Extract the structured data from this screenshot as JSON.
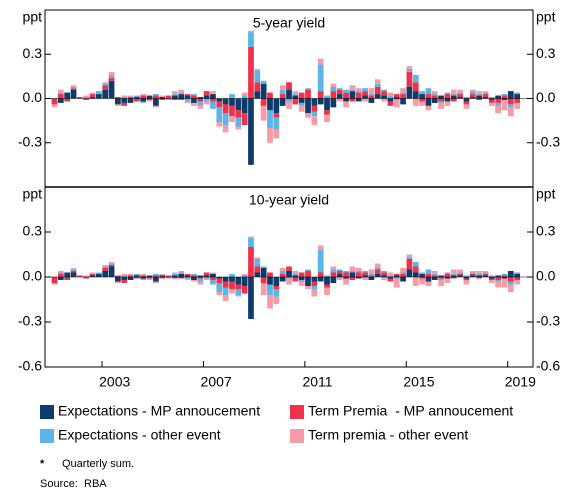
{
  "chart_data": [
    {
      "type": "bar",
      "stacked": true,
      "title": "5-year yield",
      "y_label": "ppt",
      "x": [
        2001,
        2001.25,
        2001.5,
        2001.75,
        2002,
        2002.25,
        2002.5,
        2002.75,
        2003,
        2003.25,
        2003.5,
        2003.75,
        2004,
        2004.25,
        2004.5,
        2004.75,
        2005,
        2005.25,
        2005.5,
        2005.75,
        2006,
        2006.25,
        2006.5,
        2006.75,
        2007,
        2007.25,
        2007.5,
        2007.75,
        2008,
        2008.25,
        2008.5,
        2008.75,
        2009,
        2009.25,
        2009.5,
        2009.75,
        2010,
        2010.25,
        2010.5,
        2010.75,
        2011,
        2011.25,
        2011.5,
        2011.75,
        2012,
        2012.25,
        2012.5,
        2012.75,
        2013,
        2013.25,
        2013.5,
        2013.75,
        2014,
        2014.25,
        2014.5,
        2014.75,
        2015,
        2015.25,
        2015.5,
        2015.75,
        2016,
        2016.25,
        2016.5,
        2016.75,
        2017,
        2017.25,
        2017.5,
        2017.75,
        2018,
        2018.25,
        2018.5,
        2018.75,
        2019,
        2019.25
      ],
      "xlim": [
        2000.75,
        2020
      ],
      "ylim": [
        -0.6,
        0.6
      ],
      "yticks": [
        -0.3,
        {
          "value": 0,
          "label": "0.0"
        },
        0.3
      ],
      "series": [
        {
          "name": "Expectations - MP annoucement",
          "color": "#0d3b6e",
          "values": [
            0,
            -0.03,
            0.04,
            0.06,
            0,
            0,
            0.01,
            0.03,
            0.06,
            0.12,
            -0.04,
            -0.03,
            -0.03,
            0.01,
            -0.02,
            0.02,
            -0.05,
            0.01,
            0,
            0.02,
            0.03,
            0.02,
            -0.03,
            0.01,
            0.02,
            0.03,
            -0.02,
            -0.04,
            -0.05,
            -0.08,
            -0.1,
            -0.45,
            0.05,
            0.1,
            -0.08,
            -0.1,
            -0.05,
            0.06,
            0.02,
            -0.03,
            -0.1,
            -0.05,
            -0.04,
            -0.08,
            -0.06,
            0.03,
            -0.02,
            0.05,
            -0.02,
            0.02,
            -0.03,
            0.03,
            0.02,
            -0.02,
            0.01,
            -0.04,
            0.08,
            0.05,
            0.03,
            -0.05,
            -0.03,
            0.02,
            -0.02,
            0.02,
            0.01,
            -0.02,
            0.01,
            0.02,
            0.01,
            -0.01,
            0.02,
            -0.01,
            0.05,
            0.03
          ]
        },
        {
          "name": "Term Premia  - MP annoucement",
          "color": "#f0314b",
          "values": [
            -0.04,
            0.03,
            -0.02,
            0.01,
            0.01,
            -0.01,
            0.02,
            0,
            0.03,
            0.02,
            0.01,
            -0.02,
            0.01,
            -0.02,
            0.02,
            -0.01,
            0.02,
            -0.01,
            0.02,
            -0.01,
            -0.01,
            0.01,
            0.02,
            -0.02,
            0.03,
            -0.02,
            -0.04,
            -0.06,
            -0.07,
            -0.05,
            -0.08,
            0.35,
            0.06,
            -0.05,
            0.04,
            -0.03,
            0.03,
            0.05,
            -0.04,
            0.04,
            0.06,
            -0.04,
            0.05,
            -0.03,
            0.05,
            0.03,
            0.04,
            -0.02,
            0.04,
            0.03,
            0.02,
            0.05,
            0.03,
            -0.03,
            0.02,
            0.03,
            0.1,
            0.06,
            -0.02,
            0.03,
            0.02,
            -0.02,
            0.03,
            -0.02,
            0.02,
            -0.02,
            0.02,
            -0.01,
            0.02,
            -0.02,
            -0.03,
            0.02,
            -0.04,
            -0.03
          ]
        },
        {
          "name": "Expectations - other event",
          "color": "#5bb5e6",
          "values": [
            0,
            0.01,
            0,
            0.01,
            0,
            0.01,
            0,
            0.02,
            0.01,
            0.02,
            0,
            0.01,
            0,
            0.01,
            -0.01,
            0,
            0.01,
            0,
            -0.01,
            0.01,
            0.01,
            -0.02,
            0.01,
            -0.03,
            -0.02,
            -0.05,
            -0.1,
            -0.08,
            0.03,
            -0.06,
            0.02,
            0.1,
            0.08,
            0.02,
            -0.12,
            -0.08,
            0.03,
            -0.02,
            0.01,
            -0.02,
            0.01,
            -0.03,
            0.18,
            0.02,
            0.03,
            0.01,
            0.02,
            0.01,
            0.01,
            0.02,
            0.01,
            0.02,
            0.01,
            0.02,
            -0.01,
            0.01,
            0.02,
            0.05,
            0.02,
            0.04,
            0.01,
            -0.01,
            0.01,
            0.01,
            0.01,
            0.01,
            0.02,
            0.01,
            0.01,
            0.01,
            -0.02,
            0.01,
            -0.02,
            0.01
          ]
        },
        {
          "name": "Term premia - other event",
          "color": "#f89ba4",
          "values": [
            -0.02,
            0.02,
            0,
            0.01,
            0,
            0.01,
            0.01,
            0,
            0.01,
            0.02,
            -0.01,
            0.01,
            0.01,
            0,
            0.01,
            -0.01,
            -0.01,
            0.01,
            0,
            0.02,
            0.02,
            -0.01,
            -0.02,
            -0.02,
            -0.02,
            0.02,
            -0.03,
            -0.05,
            -0.04,
            -0.02,
            0.02,
            0.01,
            0.01,
            -0.1,
            -0.1,
            -0.06,
            0.03,
            -0.05,
            0.02,
            -0.04,
            -0.03,
            -0.06,
            0.04,
            -0.05,
            0.02,
            -0.02,
            -0.04,
            0.03,
            0.02,
            -0.02,
            0.04,
            0.03,
            -0.02,
            0.02,
            -0.05,
            0.03,
            0.02,
            -0.05,
            -0.03,
            -0.03,
            0.02,
            -0.04,
            -0.03,
            0.03,
            0.02,
            -0.03,
            0.01,
            0.02,
            0.01,
            -0.02,
            -0.05,
            -0.07,
            -0.06,
            -0.04
          ]
        }
      ]
    },
    {
      "type": "bar",
      "stacked": true,
      "title": "10-year yield",
      "y_label": "ppt",
      "x": [
        2001,
        2001.25,
        2001.5,
        2001.75,
        2002,
        2002.25,
        2002.5,
        2002.75,
        2003,
        2003.25,
        2003.5,
        2003.75,
        2004,
        2004.25,
        2004.5,
        2004.75,
        2005,
        2005.25,
        2005.5,
        2005.75,
        2006,
        2006.25,
        2006.5,
        2006.75,
        2007,
        2007.25,
        2007.5,
        2007.75,
        2008,
        2008.25,
        2008.5,
        2008.75,
        2009,
        2009.25,
        2009.5,
        2009.75,
        2010,
        2010.25,
        2010.5,
        2010.75,
        2011,
        2011.25,
        2011.5,
        2011.75,
        2012,
        2012.25,
        2012.5,
        2012.75,
        2013,
        2013.25,
        2013.5,
        2013.75,
        2014,
        2014.25,
        2014.5,
        2014.75,
        2015,
        2015.25,
        2015.5,
        2015.75,
        2016,
        2016.25,
        2016.5,
        2016.75,
        2017,
        2017.25,
        2017.5,
        2017.75,
        2018,
        2018.25,
        2018.5,
        2018.75,
        2019,
        2019.25
      ],
      "xlim": [
        2000.75,
        2020
      ],
      "xticks": [
        2003,
        2007,
        2011,
        2015,
        2019
      ],
      "ylim": [
        -0.6,
        0.6
      ],
      "yticks": [
        -0.6,
        -0.3,
        {
          "value": 0,
          "label": "0.0"
        },
        0.3
      ],
      "series": [
        {
          "color": "#0d3b6e",
          "values": [
            0,
            -0.02,
            0.03,
            0.03,
            0,
            0,
            0.01,
            0.02,
            0.04,
            0.07,
            -0.03,
            -0.02,
            -0.02,
            0.01,
            -0.01,
            0.01,
            -0.03,
            0.01,
            0,
            0.01,
            0.02,
            0.01,
            -0.02,
            0.01,
            0.01,
            0.02,
            -0.01,
            -0.03,
            -0.03,
            -0.05,
            -0.06,
            -0.28,
            0.03,
            0.06,
            -0.05,
            -0.06,
            -0.03,
            0.04,
            0.01,
            -0.02,
            -0.06,
            -0.03,
            -0.03,
            -0.05,
            -0.04,
            0.02,
            -0.01,
            0.03,
            -0.01,
            0.01,
            -0.02,
            0.02,
            0.01,
            -0.01,
            0.01,
            -0.03,
            0.05,
            0.03,
            0.02,
            -0.03,
            -0.02,
            0.01,
            -0.01,
            0.01,
            0.01,
            -0.01,
            0.01,
            0.01,
            0.01,
            -0.01,
            0.01,
            -0.01,
            0.04,
            0.02
          ]
        },
        {
          "color": "#f0314b",
          "values": [
            -0.04,
            0.02,
            -0.02,
            0.01,
            0.01,
            -0.01,
            0.01,
            0,
            0.02,
            0.01,
            0.01,
            -0.02,
            0.01,
            -0.01,
            0.01,
            -0.01,
            0.01,
            -0.01,
            0.01,
            -0.01,
            -0.01,
            0.01,
            0.01,
            -0.01,
            0.02,
            -0.02,
            -0.03,
            -0.04,
            -0.05,
            -0.03,
            -0.05,
            0.2,
            0.04,
            -0.04,
            0.03,
            -0.02,
            0.02,
            0.03,
            -0.03,
            0.03,
            0.04,
            -0.03,
            0.03,
            -0.02,
            0.03,
            0.02,
            0.03,
            -0.02,
            0.03,
            0.02,
            0.01,
            0.03,
            0.02,
            -0.02,
            0.01,
            0.02,
            0.07,
            0.04,
            -0.01,
            0.02,
            0.01,
            -0.01,
            0.02,
            -0.01,
            0.01,
            -0.01,
            0.01,
            -0.01,
            0.01,
            -0.01,
            -0.02,
            0.01,
            -0.03,
            -0.02
          ]
        },
        {
          "color": "#5bb5e6",
          "values": [
            0,
            0.01,
            0,
            0.01,
            0,
            0,
            0,
            0.01,
            0.01,
            0.01,
            0,
            0.01,
            0,
            0.01,
            -0.01,
            0,
            0.01,
            0,
            -0.01,
            0.01,
            0.01,
            -0.01,
            0.01,
            -0.02,
            -0.01,
            -0.03,
            -0.06,
            -0.05,
            0.02,
            -0.04,
            0.01,
            0.06,
            0.05,
            0.01,
            -0.07,
            -0.05,
            0.02,
            -0.01,
            0.01,
            -0.01,
            0.01,
            -0.02,
            0.15,
            0.01,
            0.02,
            0.01,
            0.01,
            0.01,
            0.01,
            0.01,
            0.01,
            0.01,
            0.01,
            0.01,
            -0.01,
            0.01,
            0.01,
            0.03,
            0.01,
            0.03,
            0.01,
            -0.01,
            0.01,
            0.01,
            0.01,
            0.01,
            0.01,
            0.01,
            0.01,
            0.01,
            -0.01,
            0.01,
            -0.02,
            0.01
          ]
        },
        {
          "color": "#f89ba4",
          "values": [
            -0.01,
            0.01,
            0,
            0.01,
            0,
            0.01,
            0.01,
            0,
            0.01,
            0.01,
            -0.01,
            0.01,
            0.01,
            0,
            0.01,
            -0.01,
            -0.01,
            0.01,
            0,
            0.01,
            0.01,
            -0.01,
            -0.01,
            -0.02,
            -0.01,
            0.01,
            -0.02,
            -0.04,
            -0.03,
            -0.01,
            0.01,
            0.01,
            0.01,
            -0.08,
            -0.09,
            -0.05,
            0.02,
            -0.04,
            0.02,
            -0.03,
            -0.02,
            -0.05,
            0.03,
            -0.05,
            0.02,
            -0.02,
            -0.04,
            0.03,
            0.02,
            -0.02,
            0.03,
            0.03,
            -0.02,
            0.02,
            -0.06,
            0.03,
            0.02,
            -0.06,
            -0.04,
            -0.03,
            0.02,
            -0.04,
            -0.03,
            0.03,
            0.02,
            -0.03,
            0.01,
            0.02,
            0.01,
            -0.02,
            -0.04,
            -0.06,
            -0.05,
            -0.03
          ]
        }
      ]
    }
  ],
  "footnote": {
    "marker": "*",
    "text": "Quarterly sum."
  },
  "source": "Source:  RBA"
}
